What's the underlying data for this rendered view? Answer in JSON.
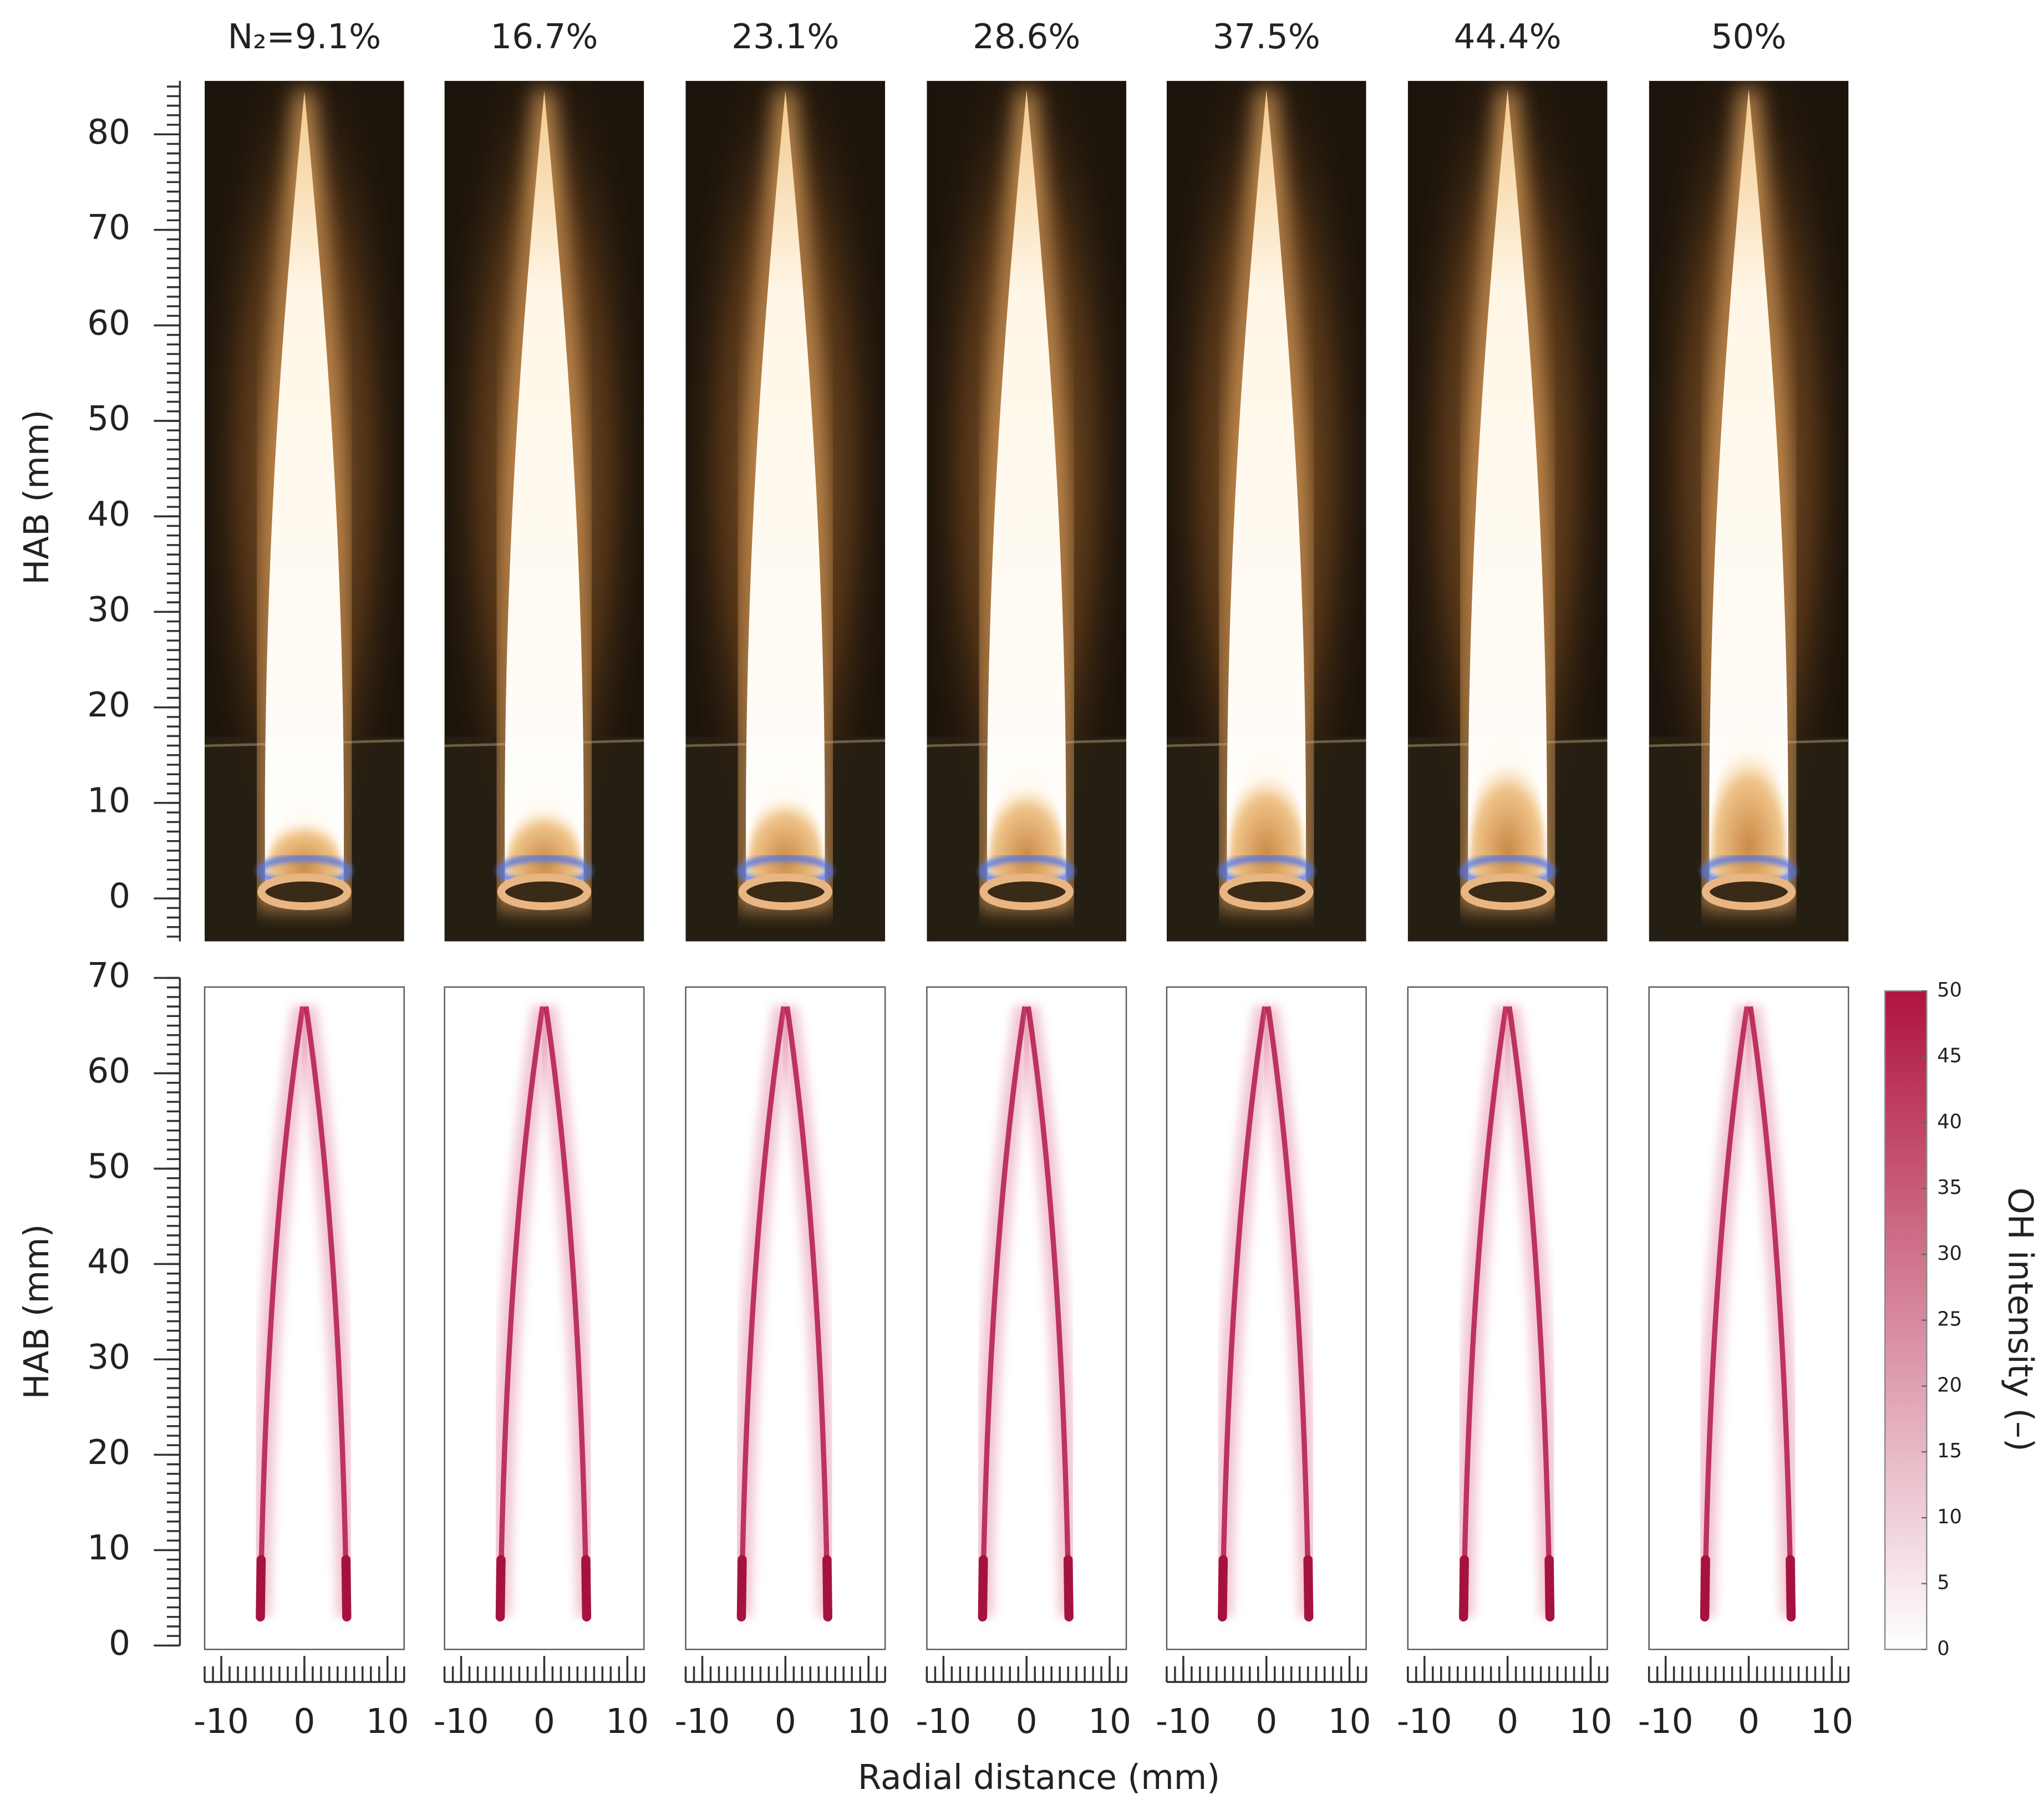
{
  "chart_data": {
    "type": "flame-panels",
    "panel_labels": [
      "N₂=9.1%",
      "16.7%",
      "23.1%",
      "28.6%",
      "37.5%",
      "44.4%",
      "50%"
    ],
    "top": {
      "ylabel": "HAB (mm)",
      "ylim": [
        -4.5,
        85.6
      ],
      "yticks": [
        0,
        10,
        20,
        30,
        40,
        50,
        60,
        70,
        80
      ]
    },
    "bottom": {
      "ylabel": "HAB (mm)",
      "ylim": [
        0,
        70
      ],
      "yticks": [
        0,
        10,
        20,
        30,
        40,
        50,
        60,
        70
      ],
      "xlabel": "Radial distance (mm)",
      "xlim": [
        -12,
        12
      ],
      "xticks": [
        -10,
        0,
        10
      ]
    },
    "colorbar": {
      "label": "OH intensity (–)",
      "lim": [
        0,
        50
      ],
      "ticks": [
        0,
        5,
        10,
        15,
        20,
        25,
        30,
        35,
        40,
        45,
        50
      ],
      "colors": [
        "#ffffff",
        "#b0143e"
      ]
    }
  }
}
